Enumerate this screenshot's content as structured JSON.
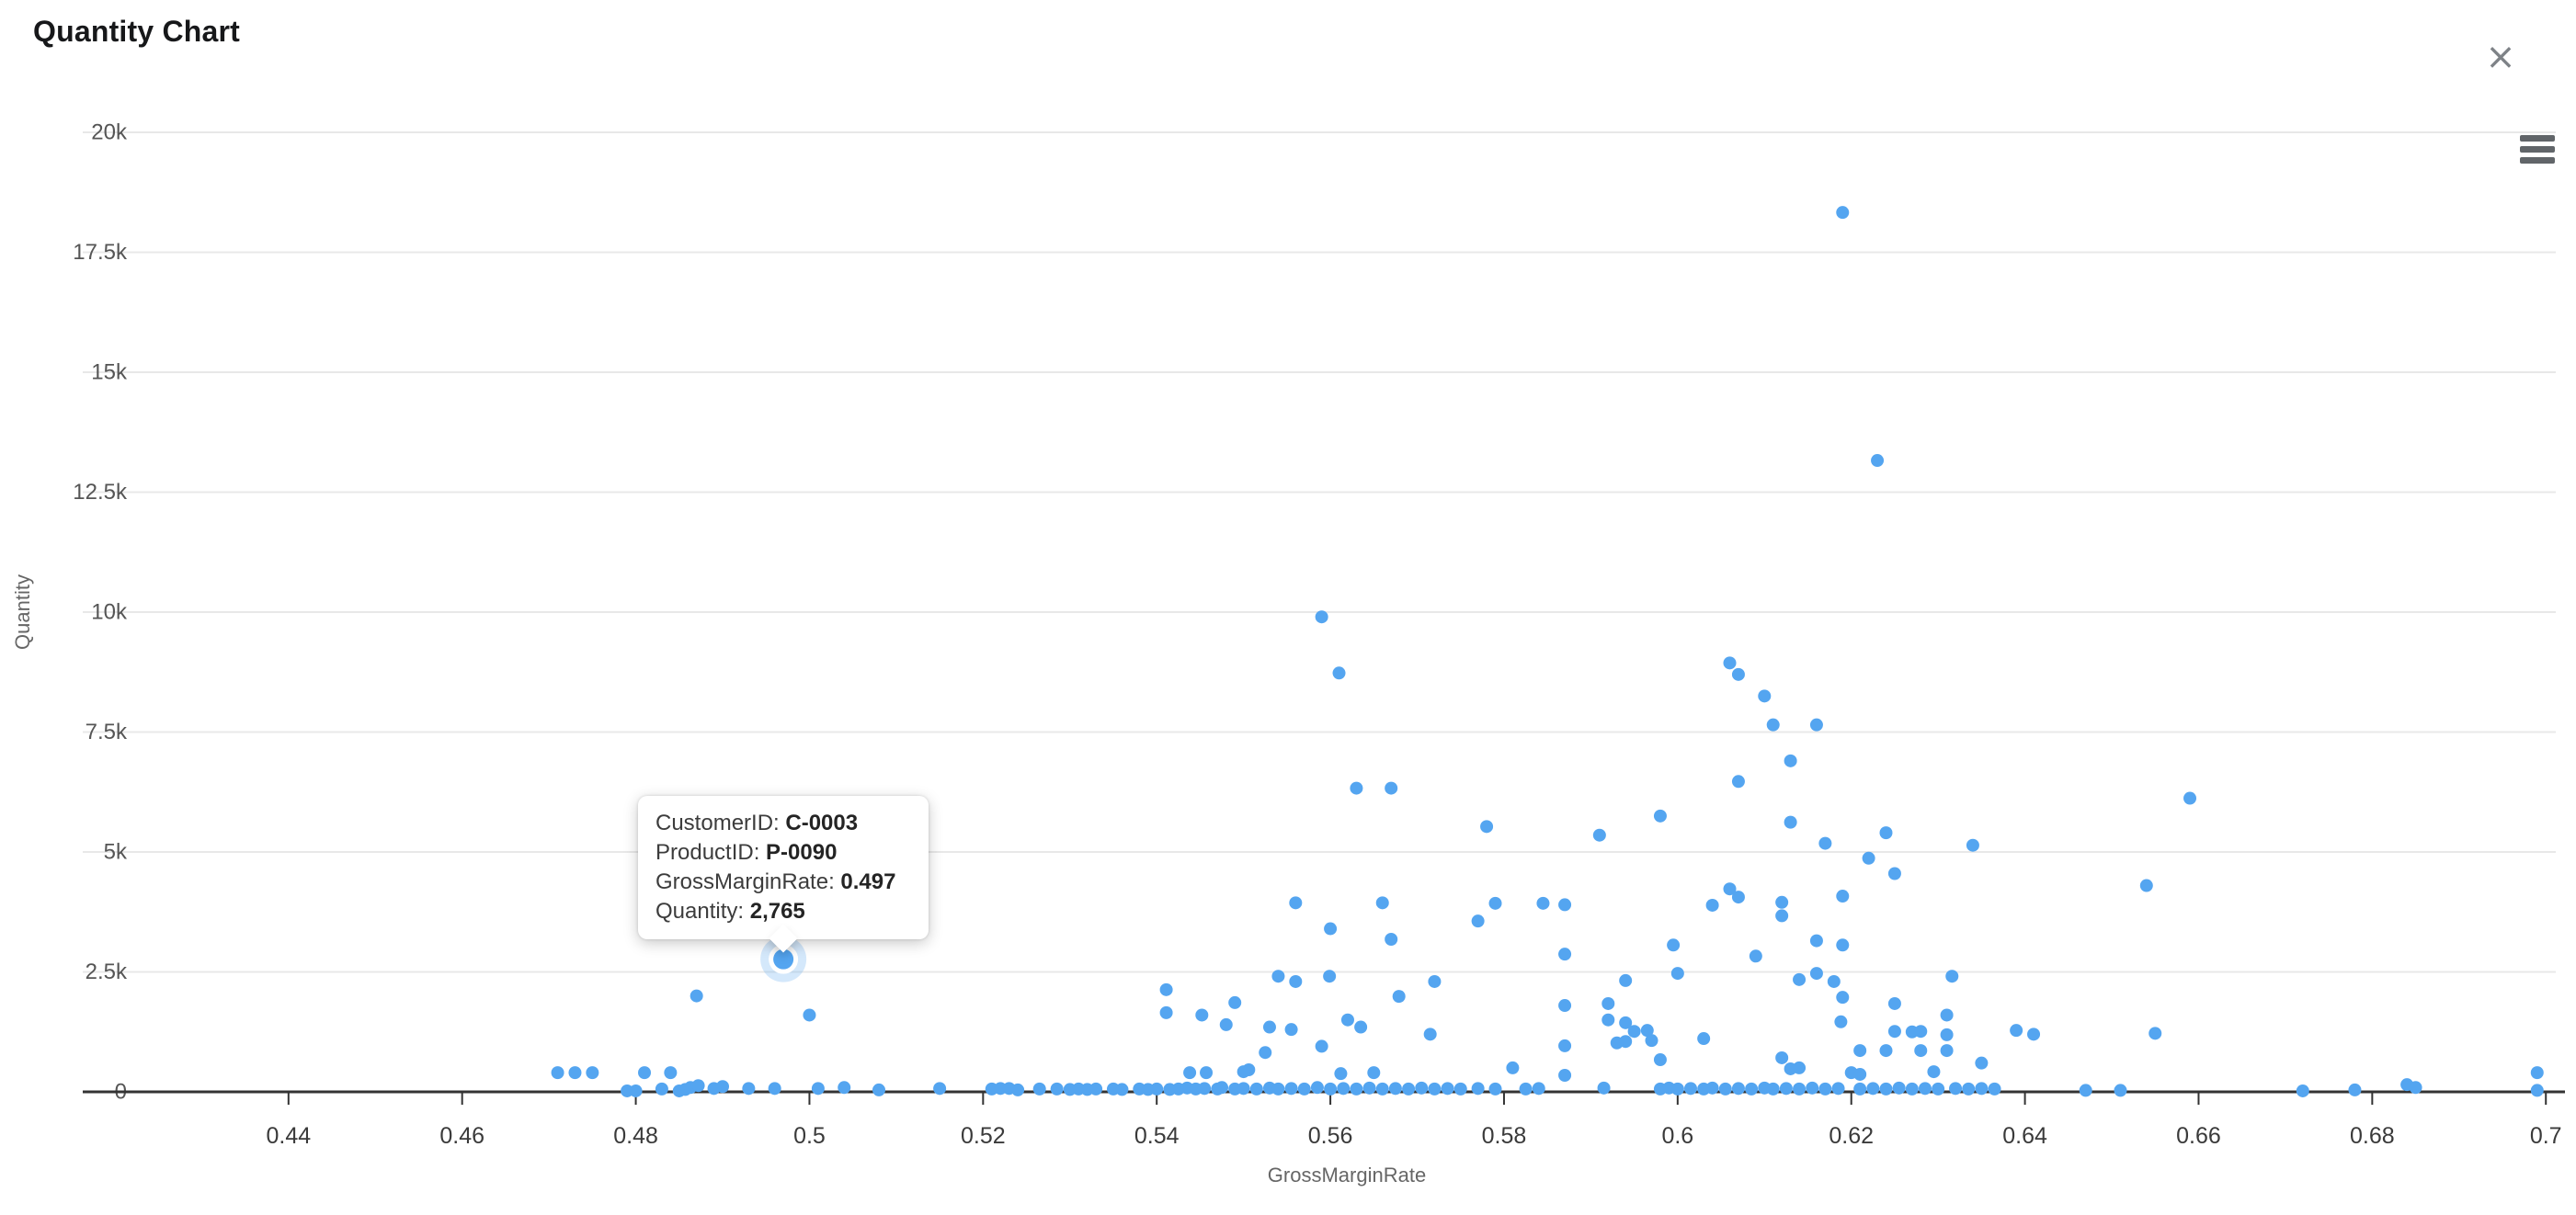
{
  "header": {
    "title": "Quantity Chart",
    "close_icon": "×"
  },
  "tooltip": {
    "lines": [
      {
        "label": "CustomerID: ",
        "value": "C-0003"
      },
      {
        "label": "ProductID: ",
        "value": "P-0090"
      },
      {
        "label": "GrossMarginRate: ",
        "value": "0.497"
      },
      {
        "label": "Quantity: ",
        "value": "2,765"
      }
    ]
  },
  "chart_data": {
    "type": "scatter",
    "title": "Quantity Chart",
    "xlabel": "GrossMarginRate",
    "ylabel": "Quantity",
    "xlim": [
      0.4163,
      0.7022
    ],
    "ylim": [
      0,
      20000
    ],
    "grid": "horizontal",
    "legend": "none",
    "marker_color": "#54A5F0",
    "halo_color": "rgba(84,165,240,0.25)",
    "axis_line_color": "#333333",
    "gridline_color": "#e8e8e8",
    "x_ticks": [
      0.44,
      0.46,
      0.48,
      0.5,
      0.52,
      0.54,
      0.56,
      0.58,
      0.6,
      0.62,
      0.64,
      0.66,
      0.68,
      0.7
    ],
    "x_tick_labels": [
      "0.44",
      "0.46",
      "0.48",
      "0.5",
      "0.52",
      "0.54",
      "0.56",
      "0.58",
      "0.6",
      "0.62",
      "0.64",
      "0.66",
      "0.68",
      "0.7"
    ],
    "y_ticks": [
      0,
      2500,
      5000,
      7500,
      10000,
      12500,
      15000,
      17500,
      20000
    ],
    "y_tick_labels": [
      "0",
      "2.5k",
      "5k",
      "7.5k",
      "10k",
      "12.5k",
      "15k",
      "17.5k",
      "20k"
    ],
    "hovered_point": {
      "CustomerID": "C-0003",
      "ProductID": "P-0090",
      "GrossMarginRate": 0.497,
      "Quantity": 2765
    },
    "points": [
      [
        0.619,
        18330
      ],
      [
        0.623,
        13160
      ],
      [
        0.559,
        9900
      ],
      [
        0.606,
        8940
      ],
      [
        0.561,
        8730
      ],
      [
        0.607,
        8700
      ],
      [
        0.61,
        8250
      ],
      [
        0.611,
        7650
      ],
      [
        0.616,
        7650
      ],
      [
        0.613,
        6900
      ],
      [
        0.607,
        6470
      ],
      [
        0.563,
        6330
      ],
      [
        0.567,
        6330
      ],
      [
        0.659,
        6120
      ],
      [
        0.598,
        5750
      ],
      [
        0.613,
        5620
      ],
      [
        0.578,
        5530
      ],
      [
        0.624,
        5400
      ],
      [
        0.591,
        5350
      ],
      [
        0.617,
        5180
      ],
      [
        0.634,
        5140
      ],
      [
        0.622,
        4870
      ],
      [
        0.625,
        4550
      ],
      [
        0.654,
        4300
      ],
      [
        0.606,
        4230
      ],
      [
        0.619,
        4080
      ],
      [
        0.607,
        4060
      ],
      [
        0.612,
        3950
      ],
      [
        0.556,
        3940
      ],
      [
        0.566,
        3940
      ],
      [
        0.579,
        3930
      ],
      [
        0.5845,
        3930
      ],
      [
        0.587,
        3900
      ],
      [
        0.604,
        3890
      ],
      [
        0.612,
        3670
      ],
      [
        0.577,
        3560
      ],
      [
        0.56,
        3400
      ],
      [
        0.567,
        3180
      ],
      [
        0.616,
        3150
      ],
      [
        0.5995,
        3060
      ],
      [
        0.619,
        3060
      ],
      [
        0.587,
        2870
      ],
      [
        0.609,
        2830
      ],
      [
        0.497,
        2765
      ],
      [
        0.6,
        2470
      ],
      [
        0.616,
        2470
      ],
      [
        0.554,
        2410
      ],
      [
        0.5599,
        2410
      ],
      [
        0.6316,
        2410
      ],
      [
        0.594,
        2320
      ],
      [
        0.614,
        2340
      ],
      [
        0.556,
        2300
      ],
      [
        0.572,
        2300
      ],
      [
        0.618,
        2300
      ],
      [
        0.5411,
        2130
      ],
      [
        0.487,
        2000
      ],
      [
        0.5679,
        1990
      ],
      [
        0.619,
        1970
      ],
      [
        0.549,
        1860
      ],
      [
        0.592,
        1840
      ],
      [
        0.625,
        1840
      ],
      [
        0.587,
        1800
      ],
      [
        0.5411,
        1650
      ],
      [
        0.5452,
        1600
      ],
      [
        0.631,
        1600
      ],
      [
        0.5,
        1600
      ],
      [
        0.592,
        1500
      ],
      [
        0.562,
        1500
      ],
      [
        0.6188,
        1460
      ],
      [
        0.594,
        1440
      ],
      [
        0.548,
        1400
      ],
      [
        0.553,
        1350
      ],
      [
        0.5635,
        1350
      ],
      [
        0.5555,
        1300
      ],
      [
        0.5965,
        1280
      ],
      [
        0.639,
        1280
      ],
      [
        0.595,
        1260
      ],
      [
        0.625,
        1260
      ],
      [
        0.627,
        1250
      ],
      [
        0.628,
        1260
      ],
      [
        0.655,
        1220
      ],
      [
        0.641,
        1200
      ],
      [
        0.631,
        1190
      ],
      [
        0.5715,
        1200
      ],
      [
        0.603,
        1110
      ],
      [
        0.597,
        1070
      ],
      [
        0.594,
        1050
      ],
      [
        0.593,
        1020
      ],
      [
        0.587,
        960
      ],
      [
        0.559,
        950
      ],
      [
        0.621,
        860
      ],
      [
        0.624,
        860
      ],
      [
        0.628,
        860
      ],
      [
        0.631,
        860
      ],
      [
        0.5525,
        820
      ],
      [
        0.612,
        710
      ],
      [
        0.598,
        670
      ],
      [
        0.635,
        600
      ],
      [
        0.581,
        500
      ],
      [
        0.614,
        500
      ],
      [
        0.613,
        480
      ],
      [
        0.5506,
        460
      ],
      [
        0.6295,
        420
      ],
      [
        0.471,
        400
      ],
      [
        0.473,
        400
      ],
      [
        0.475,
        400
      ],
      [
        0.481,
        400
      ],
      [
        0.484,
        400
      ],
      [
        0.5438,
        400
      ],
      [
        0.5457,
        400
      ],
      [
        0.55,
        420
      ],
      [
        0.5612,
        380
      ],
      [
        0.565,
        400
      ],
      [
        0.62,
        400
      ],
      [
        0.699,
        400
      ],
      [
        0.621,
        365
      ],
      [
        0.587,
        345
      ],
      [
        0.479,
        20
      ],
      [
        0.48,
        20
      ],
      [
        0.483,
        60
      ],
      [
        0.485,
        20
      ],
      [
        0.4857,
        50
      ],
      [
        0.4863,
        90
      ],
      [
        0.4872,
        130
      ],
      [
        0.489,
        70
      ],
      [
        0.49,
        110
      ],
      [
        0.493,
        70
      ],
      [
        0.496,
        70
      ],
      [
        0.501,
        70
      ],
      [
        0.504,
        90
      ],
      [
        0.508,
        40
      ],
      [
        0.515,
        70
      ],
      [
        0.521,
        60
      ],
      [
        0.522,
        70
      ],
      [
        0.523,
        70
      ],
      [
        0.524,
        40
      ],
      [
        0.5265,
        60
      ],
      [
        0.5285,
        60
      ],
      [
        0.53,
        50
      ],
      [
        0.531,
        60
      ],
      [
        0.532,
        50
      ],
      [
        0.533,
        60
      ],
      [
        0.535,
        60
      ],
      [
        0.536,
        50
      ],
      [
        0.538,
        60
      ],
      [
        0.539,
        50
      ],
      [
        0.54,
        60
      ],
      [
        0.5415,
        50
      ],
      [
        0.5425,
        60
      ],
      [
        0.5435,
        80
      ],
      [
        0.5445,
        60
      ],
      [
        0.5455,
        70
      ],
      [
        0.547,
        60
      ],
      [
        0.5475,
        90
      ],
      [
        0.549,
        60
      ],
      [
        0.55,
        70
      ],
      [
        0.5515,
        60
      ],
      [
        0.553,
        80
      ],
      [
        0.554,
        60
      ],
      [
        0.5555,
        70
      ],
      [
        0.557,
        60
      ],
      [
        0.5585,
        90
      ],
      [
        0.56,
        60
      ],
      [
        0.5615,
        70
      ],
      [
        0.563,
        60
      ],
      [
        0.5645,
        80
      ],
      [
        0.566,
        60
      ],
      [
        0.5675,
        70
      ],
      [
        0.569,
        60
      ],
      [
        0.5705,
        80
      ],
      [
        0.572,
        60
      ],
      [
        0.5735,
        70
      ],
      [
        0.575,
        60
      ],
      [
        0.577,
        70
      ],
      [
        0.579,
        60
      ],
      [
        0.5825,
        60
      ],
      [
        0.584,
        70
      ],
      [
        0.5915,
        80
      ],
      [
        0.598,
        60
      ],
      [
        0.599,
        80
      ],
      [
        0.6,
        60
      ],
      [
        0.6015,
        70
      ],
      [
        0.603,
        60
      ],
      [
        0.604,
        80
      ],
      [
        0.6055,
        60
      ],
      [
        0.607,
        70
      ],
      [
        0.6085,
        60
      ],
      [
        0.61,
        80
      ],
      [
        0.611,
        60
      ],
      [
        0.6125,
        70
      ],
      [
        0.614,
        60
      ],
      [
        0.6155,
        80
      ],
      [
        0.617,
        60
      ],
      [
        0.6185,
        70
      ],
      [
        0.621,
        60
      ],
      [
        0.6225,
        70
      ],
      [
        0.624,
        60
      ],
      [
        0.6255,
        80
      ],
      [
        0.627,
        60
      ],
      [
        0.6285,
        70
      ],
      [
        0.63,
        60
      ],
      [
        0.632,
        70
      ],
      [
        0.6335,
        60
      ],
      [
        0.635,
        70
      ],
      [
        0.6365,
        60
      ],
      [
        0.647,
        30
      ],
      [
        0.651,
        30
      ],
      [
        0.672,
        20
      ],
      [
        0.678,
        40
      ],
      [
        0.684,
        150
      ],
      [
        0.685,
        90
      ],
      [
        0.699,
        30
      ]
    ]
  }
}
